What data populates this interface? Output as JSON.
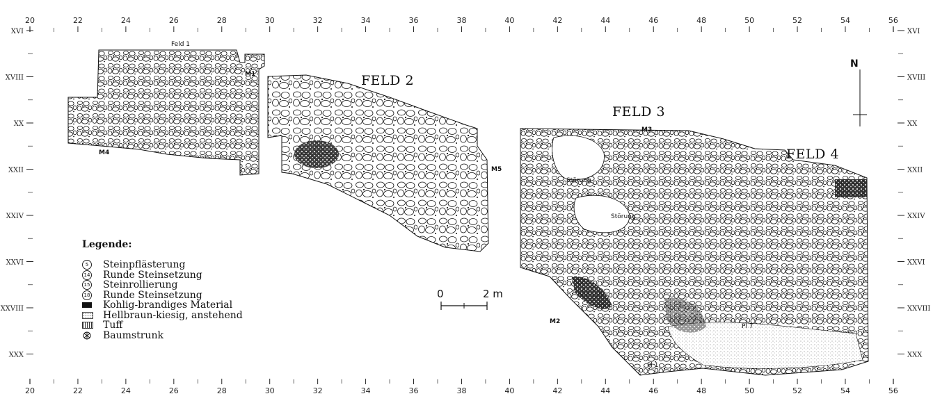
{
  "grid": {
    "x_labels_top": [
      "20",
      "22",
      "24",
      "26",
      "28",
      "30",
      "32",
      "34",
      "36",
      "38",
      "40",
      "42",
      "44",
      "46",
      "48",
      "50",
      "52",
      "54",
      "56"
    ],
    "x_labels_bottom": [
      "20",
      "22",
      "24",
      "26",
      "28",
      "30",
      "32",
      "34",
      "36",
      "38",
      "40",
      "42",
      "44",
      "46",
      "48",
      "50",
      "52",
      "54",
      "56"
    ],
    "y_labels_left": [
      "XVI",
      "XVIII",
      "XX",
      "XXII",
      "XXIV",
      "XXVI",
      "XXVIII",
      "XXX"
    ],
    "y_labels_right": [
      "XVI",
      "XVIII",
      "XX",
      "XXII",
      "XXIV",
      "XXVI",
      "XXVIII",
      "XXX"
    ]
  },
  "fields": {
    "feld1": "Feld 1",
    "feld2": "FELD 2",
    "feld3": "FELD 3",
    "feld4": "FELD 4"
  },
  "wall_markers": {
    "m1": "M1",
    "m2": "M2",
    "m3": "M3",
    "m4": "M4",
    "m5": "M5"
  },
  "annotations": {
    "stoerung1": "Störung",
    "stoerung2": "Störung",
    "pl1": "Pl 1",
    "pl7": "Pl 7"
  },
  "legend": {
    "title": "Legende:",
    "items": [
      {
        "symbol": "5",
        "label": "Steinpflästerung"
      },
      {
        "symbol": "14",
        "label": "Runde Steinsetzung"
      },
      {
        "symbol": "15",
        "label": "Steinrollierung"
      },
      {
        "symbol": "18",
        "label": "Runde Steinsetzung"
      },
      {
        "symbol": "black-fill",
        "label": "Kohlig-brandiges Material"
      },
      {
        "symbol": "dots-fill",
        "label": "Hellbraun-kiesig, anstehend"
      },
      {
        "symbol": "tuff-fill",
        "label": "Tuff"
      },
      {
        "symbol": "tree-stump-icon",
        "label": "Baumstrunk"
      }
    ]
  },
  "scale_bar": {
    "start_label": "0",
    "end_label": "2 m"
  },
  "north_arrow": {
    "label": "N"
  }
}
